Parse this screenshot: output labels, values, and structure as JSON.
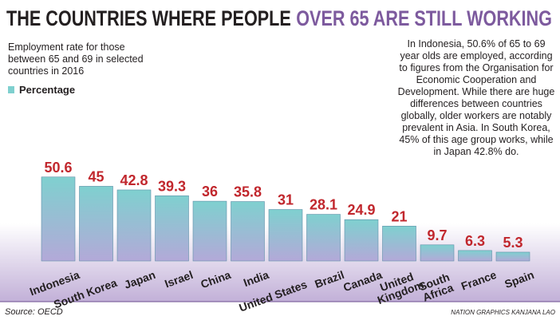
{
  "chart_data": {
    "type": "bar",
    "title": "THE COUNTRIES WHERE PEOPLE",
    "title_highlight": "OVER 65 ARE STILL WORKING",
    "subtitle": "Employment rate for those between 65 and 69 in selected countries in 2016",
    "legend": "Percentage",
    "annotation": "In Indonesia, 50.6% of 65 to 69 year olds are employed, according to figures from the Organisation for Economic Cooperation and Development. While there are huge differences between countries globally, older workers are notably prevalent in Asia. In South Korea, 45% of this age group works, while in Japan 42.8% do.",
    "categories": [
      "Indonesia",
      "South Korea",
      "Japan",
      "Israel",
      "China",
      "India",
      "United States",
      "Brazil",
      "Canada",
      "United Kingdom",
      "South Africa",
      "France",
      "Spain"
    ],
    "values": [
      50.6,
      45,
      42.8,
      39.3,
      36,
      35.8,
      31,
      28.1,
      24.9,
      21,
      9.7,
      6.3,
      5.3
    ],
    "color": "#7fd0cf",
    "value_label_color": "#c1272d",
    "source": "Source: OECD",
    "credit": "NATION GRAPHICS KANJANA LAO"
  }
}
